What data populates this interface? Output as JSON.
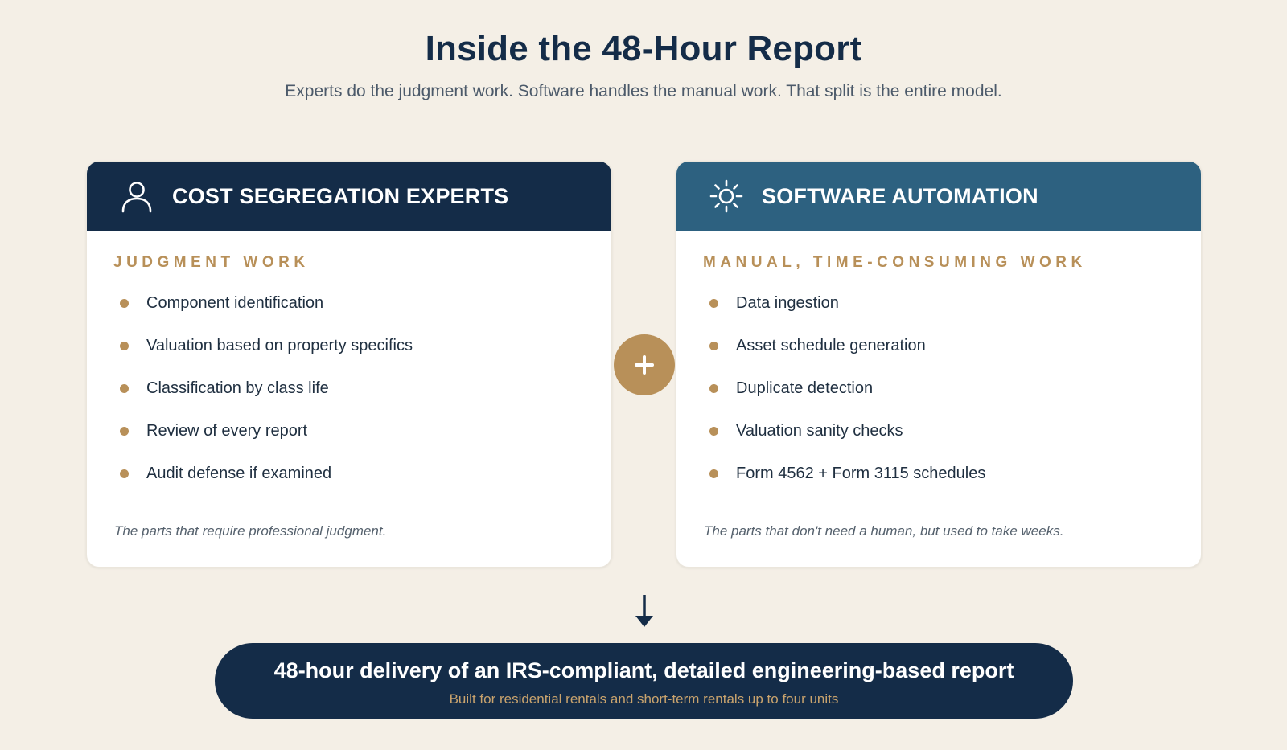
{
  "header": {
    "title": "Inside the 48-Hour Report",
    "subtitle": "Experts do the judgment work. Software handles the manual work. That split is the entire model."
  },
  "experts_card": {
    "icon": "person-icon",
    "title": "COST SEGREGATION EXPERTS",
    "section_label": "JUDGMENT WORK",
    "items": [
      "Component identification",
      "Valuation based on property specifics",
      "Classification by class life",
      "Review of every report",
      "Audit defense if examined"
    ],
    "footnote": "The parts that require professional judgment."
  },
  "software_card": {
    "icon": "gear-icon",
    "title": "SOFTWARE AUTOMATION",
    "section_label": "MANUAL, TIME-CONSUMING WORK",
    "items": [
      "Data ingestion",
      "Asset schedule generation",
      "Duplicate detection",
      "Valuation sanity checks",
      "Form 4562 + Form 3115 schedules"
    ],
    "footnote": "The parts that don't need a human, but used to take weeks."
  },
  "connector": {
    "plus_icon": "plus-icon",
    "arrow_icon": "arrow-down-icon"
  },
  "result": {
    "title": "48-hour delivery of an IRS-compliant, detailed engineering-based report",
    "subtitle": "Built for residential rentals and short-term rentals up to four units"
  },
  "colors": {
    "background": "#f4efe6",
    "navy": "#142c48",
    "teal": "#2d6180",
    "gold": "#b89059"
  }
}
